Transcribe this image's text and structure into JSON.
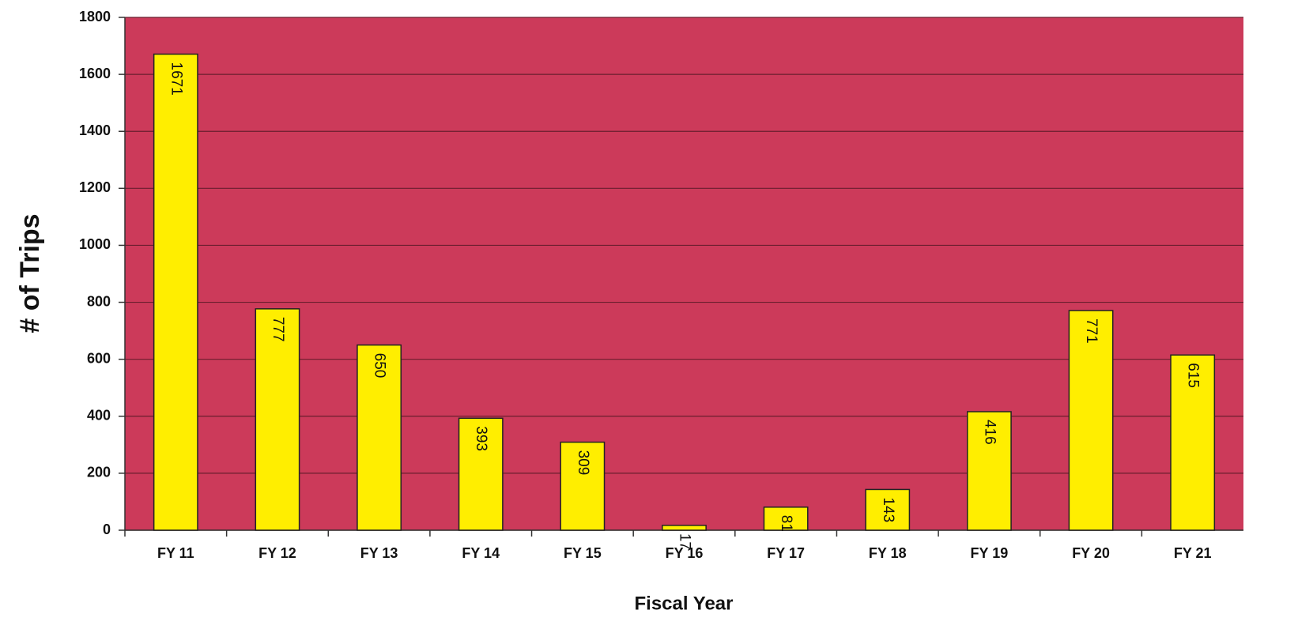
{
  "chart_data": {
    "type": "bar",
    "xlabel": "Fiscal Year",
    "ylabel": "# of Trips",
    "categories": [
      "FY 11",
      "FY 12",
      "FY 13",
      "FY 14",
      "FY 15",
      "FY 16",
      "FY 17",
      "FY 18",
      "FY 19",
      "FY 20",
      "FY 21"
    ],
    "values": [
      1671,
      777,
      650,
      393,
      309,
      17,
      81,
      143,
      416,
      771,
      615
    ],
    "color": "#ffee00",
    "background": "#cc3a5a",
    "ylim": [
      0,
      1800
    ],
    "yticks": [
      0,
      200,
      400,
      600,
      800,
      1000,
      1200,
      1400,
      1600,
      1800
    ],
    "grid": true
  }
}
